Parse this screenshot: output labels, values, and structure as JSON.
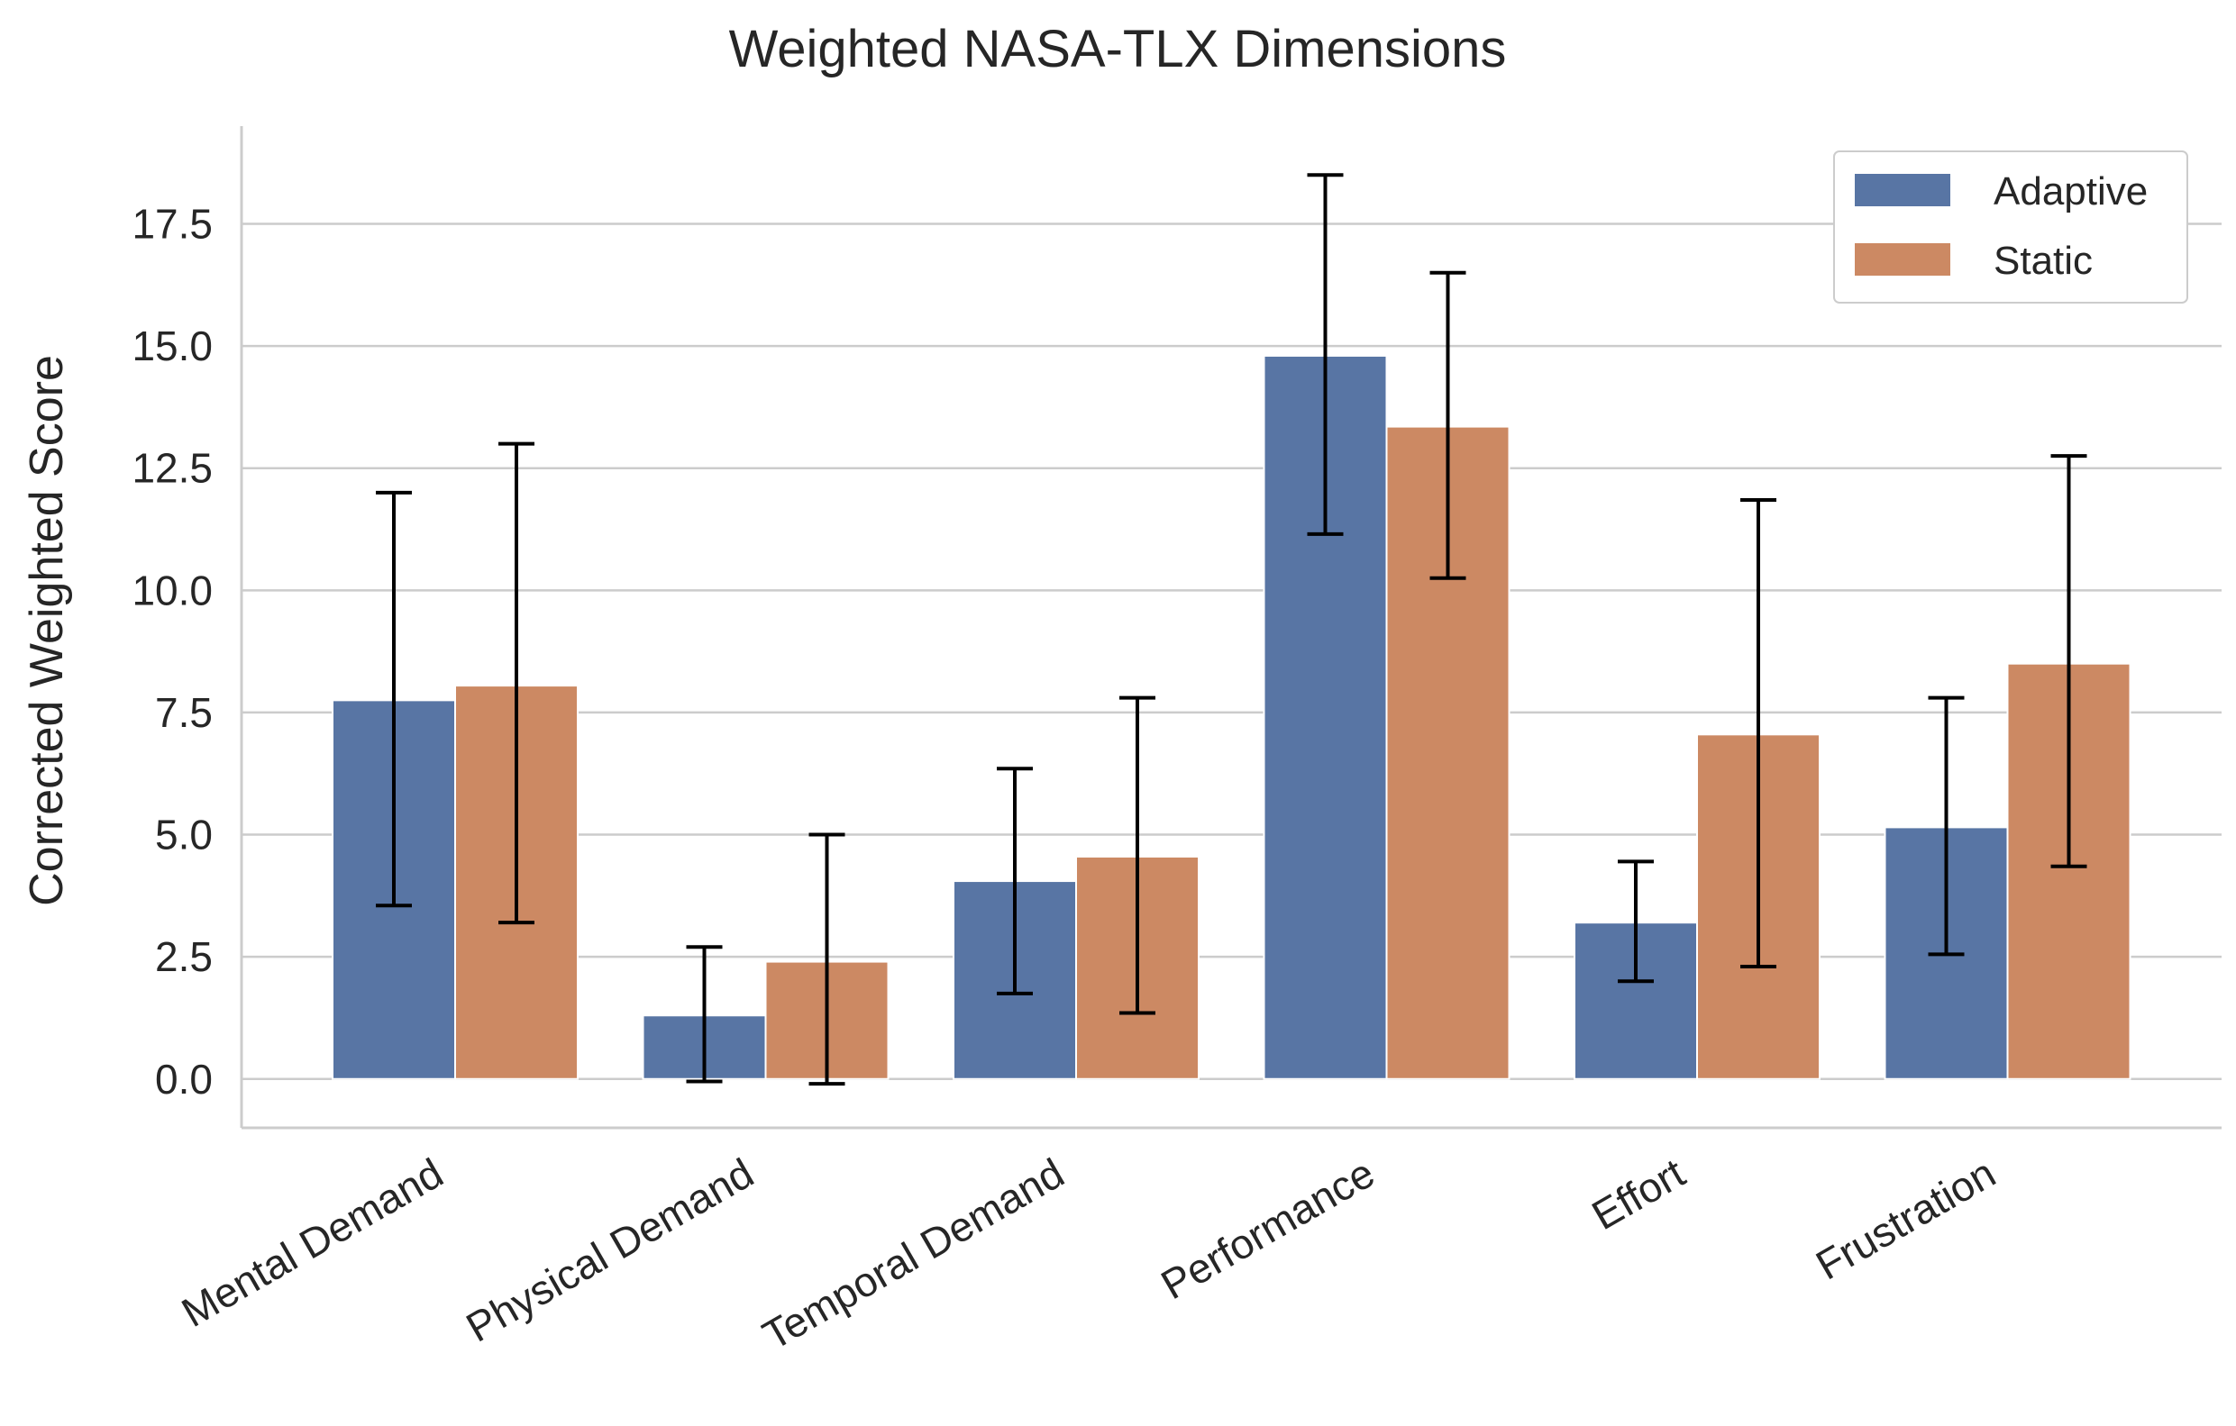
{
  "chart_data": {
    "type": "bar",
    "title": "Weighted NASA-TLX Dimensions",
    "xlabel": "",
    "ylabel": "Corrected Weighted Score",
    "ylim": [
      -1.0,
      19.5
    ],
    "yticks": [
      "0.0",
      "2.5",
      "5.0",
      "7.5",
      "10.0",
      "12.5",
      "15.0",
      "17.5"
    ],
    "ytick_values": [
      0,
      2.5,
      5.0,
      7.5,
      10.0,
      12.5,
      15.0,
      17.5
    ],
    "grid": "horizontal",
    "legend_position": "top-right",
    "categories": [
      "Mental Demand",
      "Physical Demand",
      "Temporal Demand",
      "Performance",
      "Effort",
      "Frustration"
    ],
    "series": [
      {
        "name": "Adaptive",
        "color": "#5875a4",
        "values": [
          7.75,
          1.3,
          4.05,
          14.8,
          3.2,
          5.15
        ],
        "error_low": [
          3.55,
          -0.05,
          1.75,
          11.15,
          2.0,
          2.55
        ],
        "error_high": [
          12.0,
          2.7,
          6.35,
          18.5,
          4.45,
          7.8
        ]
      },
      {
        "name": "Static",
        "color": "#cc8963",
        "values": [
          8.05,
          2.4,
          4.55,
          13.35,
          7.05,
          8.5
        ],
        "error_low": [
          3.2,
          -0.1,
          1.35,
          10.25,
          2.3,
          4.35
        ],
        "error_high": [
          13.0,
          5.0,
          7.8,
          16.5,
          11.85,
          12.75
        ]
      }
    ]
  }
}
